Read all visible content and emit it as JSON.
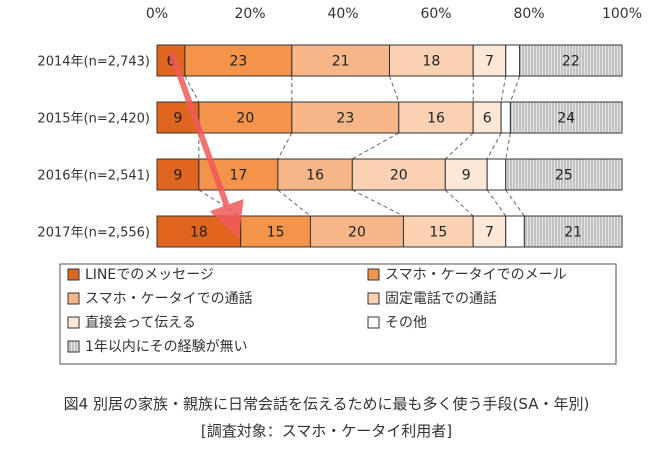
{
  "chart_data": {
    "type": "bar",
    "orientation": "horizontal",
    "stacked": true,
    "xlim": [
      0,
      100
    ],
    "x_ticks": [
      "0%",
      "20%",
      "40%",
      "60%",
      "80%",
      "100%"
    ],
    "categories": [
      "2014年(n=2,743)",
      "2015年(n=2,420)",
      "2016年(n=2,541)",
      "2017年(n=2,556)"
    ],
    "series": [
      {
        "name": "LINEでのメッセージ",
        "values": [
          6,
          9,
          9,
          18
        ],
        "color": "#e0651f",
        "pattern": "solid"
      },
      {
        "name": "スマホ・ケータイでのメール",
        "values": [
          23,
          20,
          17,
          15
        ],
        "color": "#f4934a",
        "pattern": "solid"
      },
      {
        "name": "スマホ・ケータイでの通話",
        "values": [
          21,
          23,
          16,
          20
        ],
        "color": "#f7b688",
        "pattern": "solid"
      },
      {
        "name": "固定電話での通話",
        "values": [
          18,
          16,
          20,
          15
        ],
        "color": "#fad2b3",
        "pattern": "solid"
      },
      {
        "name": "直接会って伝える",
        "values": [
          7,
          6,
          9,
          7
        ],
        "color": "#fde7d6",
        "pattern": "solid"
      },
      {
        "name": "その他",
        "values": [
          null,
          null,
          null,
          null
        ],
        "color": "#ffffff",
        "pattern": "solid"
      },
      {
        "name": "1年以内にその経験が無い",
        "values": [
          22,
          24,
          25,
          21
        ],
        "color": "#cfcfcf",
        "pattern": "vertical-lines"
      }
    ],
    "connectors": "dashed",
    "annotation": "red arrow from 2014 LINE segment to 2017 LINE segment",
    "legend_position": "bottom"
  },
  "caption": {
    "line1": "図4 別居の家族・親族に日常会話を伝えるために最も多く使う手段(SA・年別)",
    "line2": "[調査対象：スマホ・ケータイ利用者]"
  },
  "colors": {
    "arrow": "#f05a5a",
    "border": "#333333",
    "text": "#333333"
  }
}
